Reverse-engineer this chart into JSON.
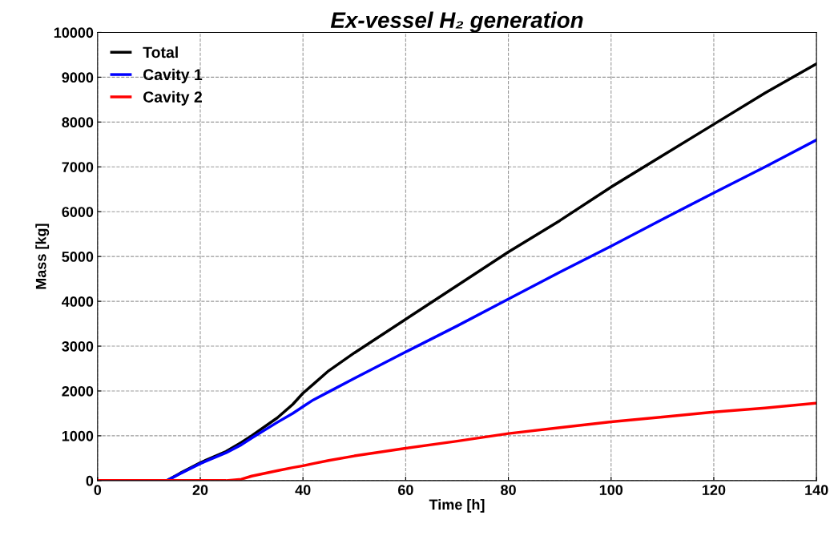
{
  "chart_data": {
    "type": "line",
    "title": "Ex-vessel H₂ generation",
    "xlabel": "Time [h]",
    "ylabel": "Mass [kg]",
    "xlim": [
      0,
      140
    ],
    "xticks": [
      0,
      20,
      40,
      60,
      80,
      100,
      120,
      140
    ],
    "ylim": [
      0,
      10000
    ],
    "yticks": [
      0,
      1000,
      2000,
      3000,
      4000,
      5000,
      6000,
      7000,
      8000,
      9000,
      10000
    ],
    "grid": true,
    "legend": "top left",
    "marker": "none",
    "line_style": "solid",
    "x": [
      0,
      13.5,
      16,
      20,
      25,
      28,
      30,
      35,
      38,
      40,
      42,
      45,
      50,
      60,
      70,
      80,
      90,
      100,
      110,
      120,
      130,
      140
    ],
    "series": [
      {
        "name": "Total",
        "color": "#000000",
        "values": [
          0,
          0,
          160,
          400,
          650,
          850,
          1000,
          1400,
          1700,
          1950,
          2150,
          2450,
          2850,
          3600,
          4350,
          5100,
          5800,
          6550,
          7250,
          7950,
          8650,
          9300
        ]
      },
      {
        "name": "Cavity 1",
        "color": "#0000ff",
        "values": [
          0,
          0,
          150,
          380,
          620,
          800,
          950,
          1300,
          1500,
          1650,
          1800,
          1980,
          2280,
          2870,
          3450,
          4050,
          4650,
          5230,
          5830,
          6420,
          7000,
          7600
        ]
      },
      {
        "name": "Cavity 2",
        "color": "#ff0000",
        "values": [
          0,
          0,
          0,
          0,
          0,
          30,
          100,
          220,
          290,
          330,
          380,
          450,
          550,
          720,
          880,
          1050,
          1180,
          1310,
          1420,
          1530,
          1620,
          1730
        ]
      }
    ]
  }
}
